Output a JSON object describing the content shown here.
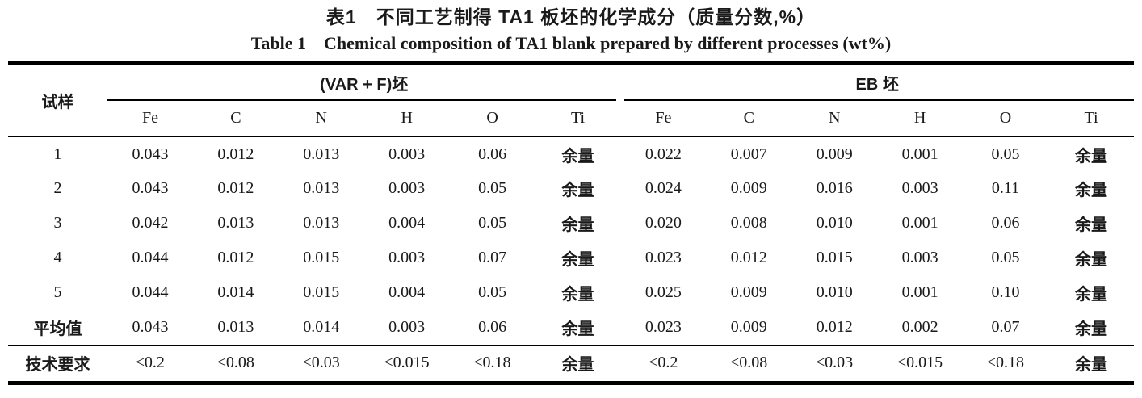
{
  "title": {
    "zh": "表1　不同工艺制得 TA1 板坯的化学成分（质量分数,%）",
    "en": "Table 1　Chemical composition of TA1 blank prepared by different processes (wt%)"
  },
  "table": {
    "row_header": "试样",
    "groups": [
      {
        "label": "(VAR + F)坯",
        "columns": [
          "Fe",
          "C",
          "N",
          "H",
          "O",
          "Ti"
        ]
      },
      {
        "label": "EB 坯",
        "columns": [
          "Fe",
          "C",
          "N",
          "H",
          "O",
          "Ti"
        ]
      }
    ],
    "rows": [
      {
        "label": "1",
        "type": "data",
        "var_f": [
          "0.043",
          "0.012",
          "0.013",
          "0.003",
          "0.06",
          "余量"
        ],
        "eb": [
          "0.022",
          "0.007",
          "0.009",
          "0.001",
          "0.05",
          "余量"
        ]
      },
      {
        "label": "2",
        "type": "data",
        "var_f": [
          "0.043",
          "0.012",
          "0.013",
          "0.003",
          "0.05",
          "余量"
        ],
        "eb": [
          "0.024",
          "0.009",
          "0.016",
          "0.003",
          "0.11",
          "余量"
        ]
      },
      {
        "label": "3",
        "type": "data",
        "var_f": [
          "0.042",
          "0.013",
          "0.013",
          "0.004",
          "0.05",
          "余量"
        ],
        "eb": [
          "0.020",
          "0.008",
          "0.010",
          "0.001",
          "0.06",
          "余量"
        ]
      },
      {
        "label": "4",
        "type": "data",
        "var_f": [
          "0.044",
          "0.012",
          "0.015",
          "0.003",
          "0.07",
          "余量"
        ],
        "eb": [
          "0.023",
          "0.012",
          "0.015",
          "0.003",
          "0.05",
          "余量"
        ]
      },
      {
        "label": "5",
        "type": "data",
        "var_f": [
          "0.044",
          "0.014",
          "0.015",
          "0.004",
          "0.05",
          "余量"
        ],
        "eb": [
          "0.025",
          "0.009",
          "0.010",
          "0.001",
          "0.10",
          "余量"
        ]
      },
      {
        "label": "平均值",
        "type": "data",
        "var_f": [
          "0.043",
          "0.013",
          "0.014",
          "0.003",
          "0.06",
          "余量"
        ],
        "eb": [
          "0.023",
          "0.009",
          "0.012",
          "0.002",
          "0.07",
          "余量"
        ]
      },
      {
        "label": "技术要求",
        "type": "spec",
        "var_f": [
          "≤0.2",
          "≤0.08",
          "≤0.03",
          "≤0.015",
          "≤0.18",
          "余量"
        ],
        "eb": [
          "≤0.2",
          "≤0.08",
          "≤0.03",
          "≤0.015",
          "≤0.18",
          "余量"
        ]
      }
    ],
    "colors": {
      "text": "#1a1a1a",
      "rule": "#000000",
      "background": "#ffffff"
    }
  }
}
